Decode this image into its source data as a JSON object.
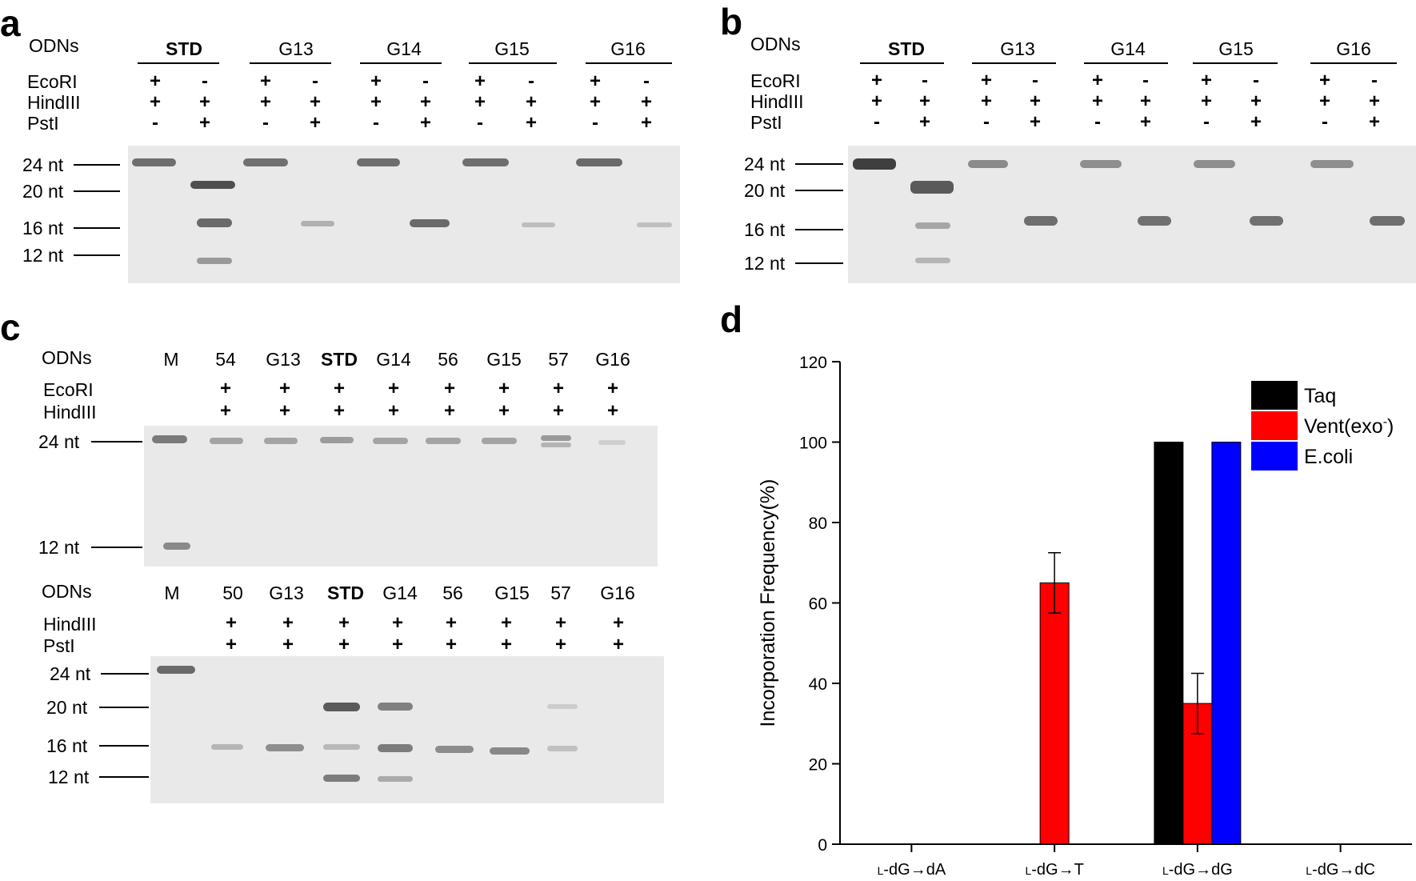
{
  "panel_a": {
    "letter": "a",
    "odns_label": "ODNs",
    "groups": [
      "STD",
      "G13",
      "G14",
      "G15",
      "G16"
    ],
    "rows": [
      {
        "label": "EcoRI",
        "signs": [
          "+",
          "-",
          "+",
          "-",
          "+",
          "-",
          "+",
          "-",
          "+",
          "-"
        ]
      },
      {
        "label": "HindIII",
        "signs": [
          "+",
          "+",
          "+",
          "+",
          "+",
          "+",
          "+",
          "+",
          "+",
          "+"
        ]
      },
      {
        "label": "PstI",
        "signs": [
          "-",
          "+",
          "-",
          "+",
          "-",
          "+",
          "-",
          "+",
          "-",
          "+"
        ]
      }
    ],
    "markers": [
      "24 nt",
      "20 nt",
      "16 nt",
      "12 nt"
    ]
  },
  "panel_b": {
    "letter": "b",
    "odns_label": "ODNs",
    "groups": [
      "STD",
      "G13",
      "G14",
      "G15",
      "G16"
    ],
    "rows": [
      {
        "label": "EcoRI",
        "signs": [
          "+",
          "-",
          "+",
          "-",
          "+",
          "-",
          "+",
          "-",
          "+",
          "-"
        ]
      },
      {
        "label": "HindIII",
        "signs": [
          "+",
          "+",
          "+",
          "+",
          "+",
          "+",
          "+",
          "+",
          "+",
          "+"
        ]
      },
      {
        "label": "PstI",
        "signs": [
          "-",
          "+",
          "-",
          "+",
          "-",
          "+",
          "-",
          "+",
          "-",
          "+"
        ]
      }
    ],
    "markers": [
      "24 nt",
      "20 nt",
      "16 nt",
      "12 nt"
    ]
  },
  "panel_c": {
    "letter": "c",
    "top": {
      "odns_label": "ODNs",
      "lanes": [
        "M",
        "54",
        "G13",
        "STD",
        "G14",
        "56",
        "G15",
        "57",
        "G16"
      ],
      "rows": [
        {
          "label": "EcoRI",
          "signs": [
            "+",
            "+",
            "+",
            "+",
            "+",
            "+",
            "+",
            "+"
          ]
        },
        {
          "label": "HindIII",
          "signs": [
            "+",
            "+",
            "+",
            "+",
            "+",
            "+",
            "+",
            "+"
          ]
        }
      ],
      "markers": [
        "24 nt",
        "12 nt"
      ]
    },
    "bottom": {
      "odns_label": "ODNs",
      "lanes": [
        "M",
        "50",
        "G13",
        "STD",
        "G14",
        "56",
        "G15",
        "57",
        "G16"
      ],
      "rows": [
        {
          "label": "HindIII",
          "signs": [
            "+",
            "+",
            "+",
            "+",
            "+",
            "+",
            "+",
            "+"
          ]
        },
        {
          "label": "PstI",
          "signs": [
            "+",
            "+",
            "+",
            "+",
            "+",
            "+",
            "+",
            "+"
          ]
        }
      ],
      "markers": [
        "24 nt",
        "20 nt",
        "16 nt",
        "12 nt"
      ]
    }
  },
  "panel_d": {
    "letter": "d",
    "chart_data": {
      "type": "bar",
      "categories": [
        "L-dG→dA",
        "L-dG→T",
        "L-dG→dG",
        "L-dG→dC"
      ],
      "category_prefix": "L",
      "category_suffixes": [
        "-dG→dA",
        "-dG→T",
        "-dG→dG",
        "-dG→dC"
      ],
      "series": [
        {
          "name": "Taq",
          "color": "#000000",
          "values": [
            0,
            0,
            100,
            0
          ],
          "errors": [
            0,
            0,
            0,
            0
          ]
        },
        {
          "name": "Vent(exo-)",
          "color": "#ff0000",
          "values": [
            0,
            65,
            35,
            0
          ],
          "errors": [
            0,
            7.5,
            7.5,
            0
          ]
        },
        {
          "name": "E.coli",
          "color": "#0000ff",
          "values": [
            0,
            0,
            100,
            0
          ],
          "errors": [
            0,
            0,
            0,
            0
          ]
        }
      ],
      "ylabel": "Incorporation Frequency(%)",
      "xlabel": "",
      "ylim": [
        0,
        120
      ],
      "yticks": [
        "0",
        "20",
        "40",
        "60",
        "80",
        "100",
        "120"
      ],
      "legend_position": "top-right",
      "grid": false
    },
    "legend": {
      "taq": "Taq",
      "vent": "Vent(exo",
      "vent_sup": "-",
      "vent_close": ")",
      "ecoli": "E.coli"
    }
  }
}
